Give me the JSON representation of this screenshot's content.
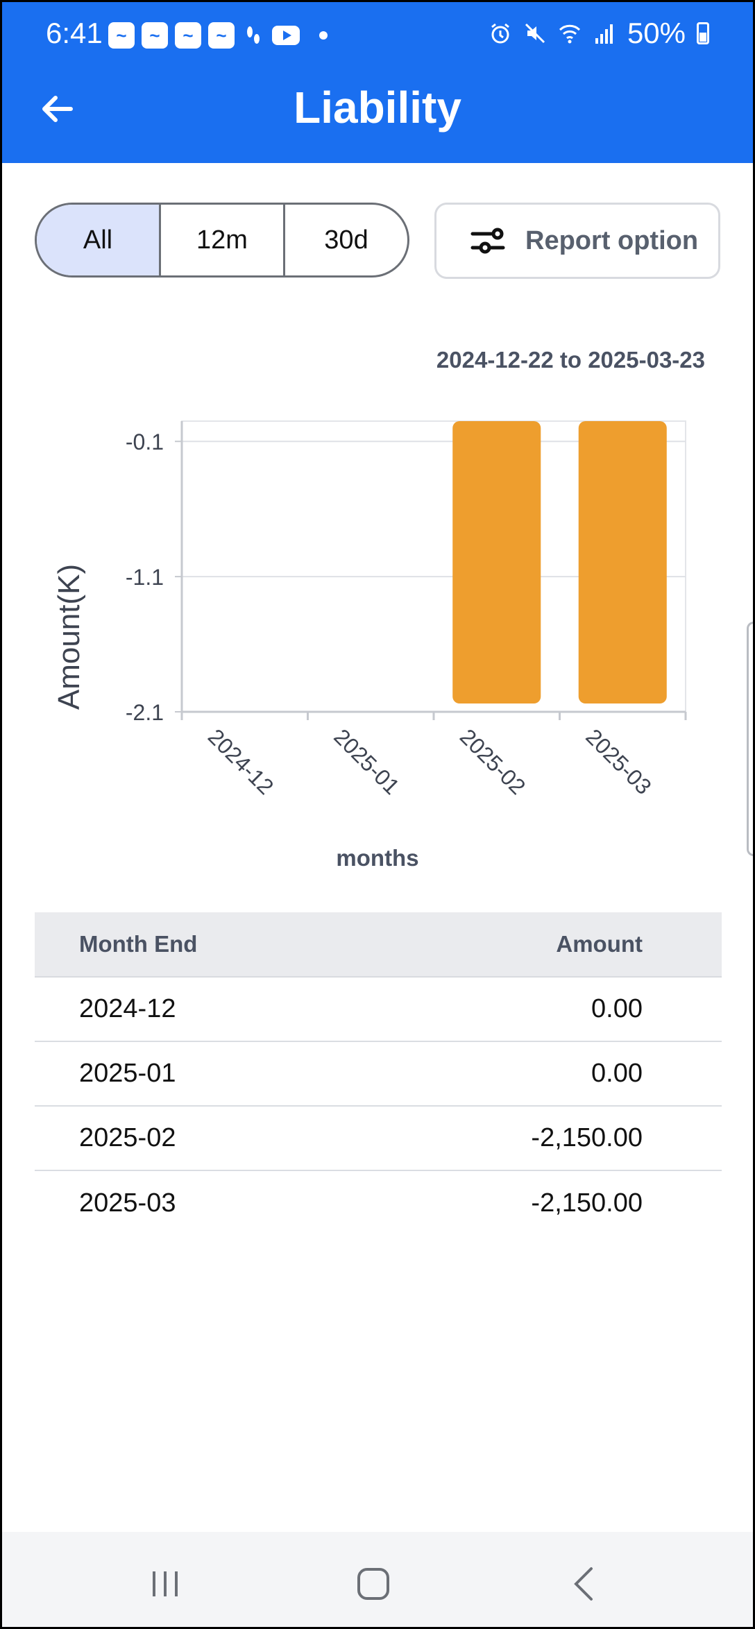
{
  "status_bar": {
    "time": "6:41",
    "battery": "50%"
  },
  "app_bar": {
    "title": "Liability"
  },
  "filters": {
    "options": [
      "All",
      "12m",
      "30d"
    ],
    "selected": "All",
    "report_option_label": "Report option"
  },
  "date_range": "2024-12-22 to 2025-03-23",
  "chart_data": {
    "type": "bar",
    "categories": [
      "2024-12",
      "2025-01",
      "2025-02",
      "2025-03"
    ],
    "values": [
      0.0,
      0.0,
      -2.15,
      -2.15
    ],
    "ylabel": "Amount(K)",
    "xlabel": "months",
    "yticks": [
      "-0.1",
      "-1.1",
      "-2.1"
    ],
    "ytick_values": [
      -0.1,
      -1.1,
      -2.1
    ],
    "ylim": [
      -2.1,
      0.05
    ],
    "bar_color": "#ee9e2e",
    "grid": true
  },
  "table": {
    "headers": [
      "Month End",
      "Amount"
    ],
    "rows": [
      {
        "month": "2024-12",
        "amount": "0.00"
      },
      {
        "month": "2025-01",
        "amount": "0.00"
      },
      {
        "month": "2025-02",
        "amount": "-2,150.00"
      },
      {
        "month": "2025-03",
        "amount": "-2,150.00"
      }
    ]
  },
  "colors": {
    "primary": "#1a6ff0",
    "segment_active": "#dbe3fb",
    "bar": "#ee9e2e"
  }
}
